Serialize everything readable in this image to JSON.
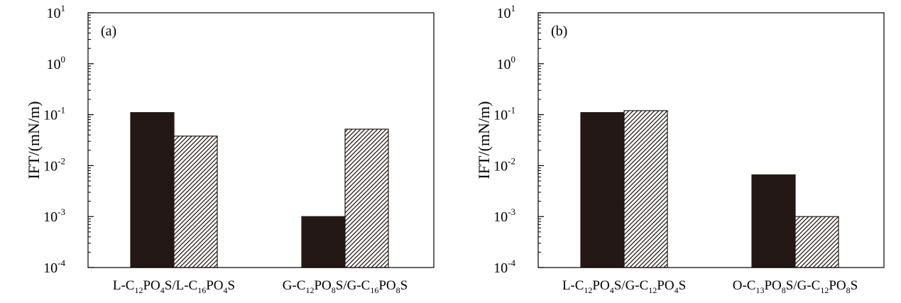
{
  "chart_data": [
    {
      "type": "bar",
      "panel_label": "(a)",
      "ylabel": "IFT/(mN/m)",
      "yscale": "log",
      "ylim": [
        0.0001,
        10
      ],
      "yticks": [
        {
          "base": "10",
          "exp": "1"
        },
        {
          "base": "10",
          "exp": "0"
        },
        {
          "base": "10",
          "exp": "-1"
        },
        {
          "base": "10",
          "exp": "-2"
        },
        {
          "base": "10",
          "exp": "-3"
        },
        {
          "base": "10",
          "exp": "-4"
        }
      ],
      "categories": [
        [
          {
            "t": "L-C"
          },
          {
            "t": "12",
            "sub": true
          },
          {
            "t": "PO"
          },
          {
            "t": "4",
            "sub": true
          },
          {
            "t": "S/L-C"
          },
          {
            "t": "16",
            "sub": true
          },
          {
            "t": "PO"
          },
          {
            "t": "4",
            "sub": true
          },
          {
            "t": "S"
          }
        ],
        [
          {
            "t": "G-C"
          },
          {
            "t": "12",
            "sub": true
          },
          {
            "t": "PO"
          },
          {
            "t": "8",
            "sub": true
          },
          {
            "t": "S/G-C"
          },
          {
            "t": "16",
            "sub": true
          },
          {
            "t": "PO"
          },
          {
            "t": "8",
            "sub": true
          },
          {
            "t": "S"
          }
        ]
      ],
      "series": [
        {
          "pattern": "solid",
          "color": "#231815",
          "values": [
            0.11,
            0.001
          ]
        },
        {
          "pattern": "hatch",
          "color": "#231815",
          "values": [
            0.038,
            0.052
          ]
        }
      ],
      "grid": false,
      "legend": false
    },
    {
      "type": "bar",
      "panel_label": "(b)",
      "ylabel": "IFT/(mN/m)",
      "yscale": "log",
      "ylim": [
        0.0001,
        10
      ],
      "yticks": [
        {
          "base": "10",
          "exp": "1"
        },
        {
          "base": "10",
          "exp": "0"
        },
        {
          "base": "10",
          "exp": "-1"
        },
        {
          "base": "10",
          "exp": "-2"
        },
        {
          "base": "10",
          "exp": "-3"
        },
        {
          "base": "10",
          "exp": "-4"
        }
      ],
      "categories": [
        [
          {
            "t": "L-C"
          },
          {
            "t": "12",
            "sub": true
          },
          {
            "t": "PO"
          },
          {
            "t": "4",
            "sub": true
          },
          {
            "t": "S/G-C"
          },
          {
            "t": "12",
            "sub": true
          },
          {
            "t": "PO"
          },
          {
            "t": "4",
            "sub": true
          },
          {
            "t": "S"
          }
        ],
        [
          {
            "t": "O-C"
          },
          {
            "t": "13",
            "sub": true
          },
          {
            "t": "PO"
          },
          {
            "t": "8",
            "sub": true
          },
          {
            "t": "S/G-C"
          },
          {
            "t": "12",
            "sub": true
          },
          {
            "t": "PO"
          },
          {
            "t": "8",
            "sub": true
          },
          {
            "t": "S"
          }
        ]
      ],
      "series": [
        {
          "pattern": "solid",
          "color": "#231815",
          "values": [
            0.11,
            0.0066
          ]
        },
        {
          "pattern": "hatch",
          "color": "#231815",
          "values": [
            0.12,
            0.001
          ]
        }
      ],
      "grid": false,
      "legend": false
    }
  ]
}
